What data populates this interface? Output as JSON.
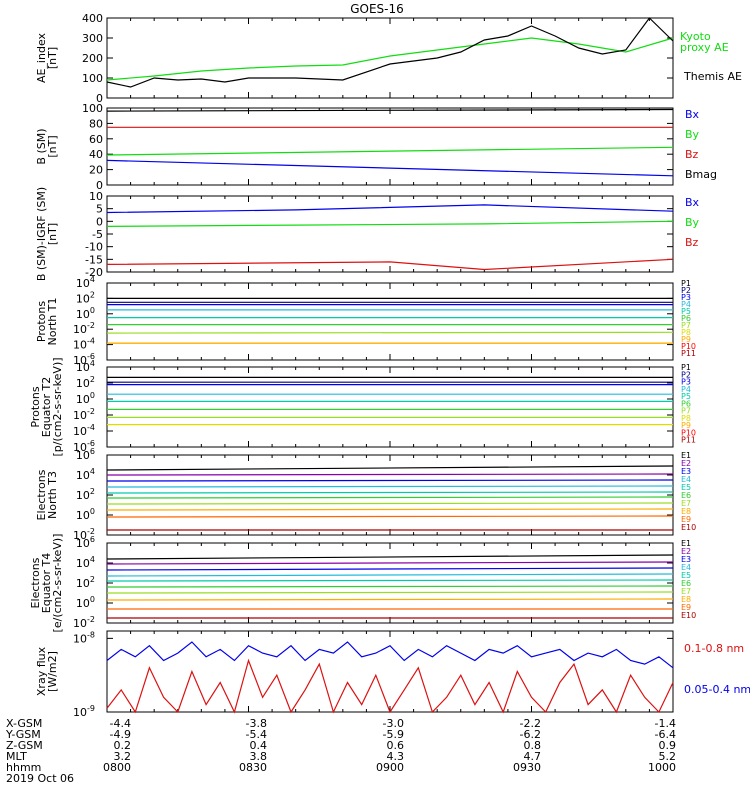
{
  "title": "GOES-16",
  "date": "2019 Oct 06",
  "footer": {
    "row_labels": [
      "X-GSM",
      "Y-GSM",
      "Z-GSM",
      "MLT",
      "hhmm"
    ],
    "columns": [
      {
        "values": [
          "-4.4",
          "-4.9",
          "0.2",
          "3.2",
          "0800"
        ]
      },
      {
        "values": [
          "-3.8",
          "-5.4",
          "0.4",
          "3.8",
          "0830"
        ]
      },
      {
        "values": [
          "-3.0",
          "-5.9",
          "0.6",
          "4.3",
          "0900"
        ]
      },
      {
        "values": [
          "-2.2",
          "-6.2",
          "0.8",
          "4.7",
          "0930"
        ]
      },
      {
        "values": [
          "-1.4",
          "-6.4",
          "0.9",
          "5.2",
          "1000"
        ]
      }
    ]
  },
  "colors": {
    "black": "#000000",
    "blue": "#0000ee",
    "green": "#11dd11",
    "red": "#dd1111",
    "navy": "#000080",
    "cyan": "#22bbdd",
    "teal": "#00ccaa",
    "bgreen": "#33cc33",
    "lime": "#99dd22",
    "yellow": "#dddd00",
    "gold": "#ffaa00",
    "orange": "#ff6600",
    "darkred": "#aa0000",
    "brightred": "#ff0000",
    "purple": "#8800aa"
  },
  "chart_data": [
    {
      "type": "line",
      "ylabel": "AE_index [nT]",
      "ylim": [
        0,
        400
      ],
      "yticks": [
        "0",
        "100",
        "200",
        "300",
        "400"
      ],
      "series": [
        {
          "name": "Kyoto proxy AE",
          "color": "#11dd11",
          "x": [
            0,
            10,
            20,
            30,
            40,
            50,
            60,
            70,
            80,
            90,
            100,
            110,
            120
          ],
          "y": [
            90,
            110,
            135,
            150,
            160,
            165,
            210,
            240,
            270,
            300,
            270,
            230,
            300
          ]
        },
        {
          "name": "Themis AE",
          "color": "#000000",
          "x": [
            0,
            5,
            10,
            15,
            20,
            25,
            30,
            40,
            50,
            60,
            70,
            75,
            80,
            85,
            90,
            95,
            100,
            105,
            110,
            115,
            120
          ],
          "y": [
            80,
            55,
            100,
            90,
            95,
            80,
            100,
            100,
            90,
            170,
            200,
            230,
            290,
            310,
            360,
            310,
            250,
            220,
            240,
            400,
            285
          ]
        }
      ]
    },
    {
      "type": "line",
      "ylabel": "B (SM) [nT]",
      "ylim": [
        0,
        100
      ],
      "yticks": [
        "0",
        "20",
        "40",
        "60",
        "80",
        "100"
      ],
      "series": [
        {
          "name": "Bx",
          "color": "#0000ee",
          "x": [
            0,
            120
          ],
          "y": [
            32,
            12
          ]
        },
        {
          "name": "By",
          "color": "#11dd11",
          "x": [
            0,
            120
          ],
          "y": [
            39,
            49
          ]
        },
        {
          "name": "Bz",
          "color": "#dd1111",
          "x": [
            0,
            120
          ],
          "y": [
            75,
            75
          ]
        },
        {
          "name": "Bmag",
          "color": "#000000",
          "x": [
            0,
            120
          ],
          "y": [
            96,
            98
          ]
        }
      ]
    },
    {
      "type": "line",
      "ylabel": "B (SM)-IGRF (SM) [nT]",
      "ylim": [
        -20,
        10
      ],
      "yticks": [
        "-20",
        "-15",
        "-10",
        "-5",
        "0",
        "5",
        "10"
      ],
      "series": [
        {
          "name": "Bx",
          "color": "#0000ee",
          "x": [
            0,
            40,
            80,
            120
          ],
          "y": [
            3.5,
            4.5,
            6.5,
            4
          ]
        },
        {
          "name": "By",
          "color": "#11dd11",
          "x": [
            0,
            40,
            80,
            120
          ],
          "y": [
            -2,
            -1.5,
            -1,
            0
          ]
        },
        {
          "name": "Bz",
          "color": "#dd1111",
          "x": [
            0,
            60,
            80,
            120
          ],
          "y": [
            -17,
            -16,
            -19,
            -15
          ]
        }
      ]
    },
    {
      "type": "line",
      "ylabel": "Protons North T1",
      "ylog": true,
      "yticks": [
        "10^-6",
        "10^-4",
        "10^-2",
        "10^0",
        "10^2",
        "10^4"
      ],
      "series": [
        {
          "name": "P1",
          "color": "#000000",
          "y": [
            2.0,
            2.0
          ]
        },
        {
          "name": "P2",
          "color": "#000080",
          "y": [
            1.5,
            1.5
          ]
        },
        {
          "name": "P3",
          "color": "#0000ee",
          "y": [
            1.2,
            1.2
          ]
        },
        {
          "name": "P4",
          "color": "#22bbdd",
          "y": [
            0.5,
            0.5
          ]
        },
        {
          "name": "P5",
          "color": "#00ccaa",
          "y": [
            -0.5,
            -0.5
          ]
        },
        {
          "name": "P6",
          "color": "#33cc33",
          "y": [
            -1.4,
            -1.4
          ]
        },
        {
          "name": "P7",
          "color": "#99dd22",
          "y": [
            -2.5,
            -2.4
          ]
        },
        {
          "name": "P8",
          "color": "#dddd00",
          "y": [
            -3.8,
            -3.8
          ]
        },
        {
          "name": "P9",
          "color": "#ffaa00",
          "y": [
            -3.8,
            -3.8
          ]
        },
        {
          "name": "P10",
          "color": "#ff0000",
          "y": [
            null,
            null
          ]
        },
        {
          "name": "P11",
          "color": "#aa0000",
          "y": [
            null,
            null
          ]
        }
      ]
    },
    {
      "type": "line",
      "ylabel": "Protons Equator T2 [p/(cm2-s-sr-keV)]",
      "ylog": true,
      "yticks": [
        "10^-6",
        "10^-4",
        "10^-2",
        "10^0",
        "10^2",
        "10^4"
      ],
      "series": [
        {
          "name": "P1",
          "color": "#000000",
          "y": [
            2.7,
            2.7
          ]
        },
        {
          "name": "P2",
          "color": "#000080",
          "y": [
            2.1,
            2.1
          ]
        },
        {
          "name": "P3",
          "color": "#0000ee",
          "y": [
            1.8,
            1.8
          ]
        },
        {
          "name": "P4",
          "color": "#22bbdd",
          "y": [
            0.6,
            0.6
          ]
        },
        {
          "name": "P5",
          "color": "#00ccaa",
          "y": [
            -0.3,
            -0.3
          ]
        },
        {
          "name": "P6",
          "color": "#33cc33",
          "y": [
            -1.3,
            -1.3
          ]
        },
        {
          "name": "P7",
          "color": "#99dd22",
          "y": [
            -2.3,
            -2.3
          ]
        },
        {
          "name": "P8",
          "color": "#dddd00",
          "y": [
            -3.2,
            -3.2
          ]
        },
        {
          "name": "P9",
          "color": "#ffaa00",
          "y": [
            null,
            null
          ]
        },
        {
          "name": "P10",
          "color": "#ff0000",
          "y": [
            null,
            null
          ]
        },
        {
          "name": "P11",
          "color": "#aa0000",
          "y": [
            null,
            null
          ]
        }
      ]
    },
    {
      "type": "line",
      "ylabel": "Electrons North T3",
      "ylog": true,
      "yticks": [
        "10^-2",
        "10^0",
        "10^2",
        "10^4",
        "10^6"
      ],
      "series": [
        {
          "name": "E1",
          "color": "#000000",
          "y": [
            4.5,
            4.9
          ]
        },
        {
          "name": "E2",
          "color": "#8800aa",
          "y": [
            4.0,
            4.1
          ]
        },
        {
          "name": "E3",
          "color": "#0000ee",
          "y": [
            3.4,
            3.5
          ]
        },
        {
          "name": "E4",
          "color": "#22bbdd",
          "y": [
            2.8,
            2.9
          ]
        },
        {
          "name": "E5",
          "color": "#00ccaa",
          "y": [
            2.2,
            2.3
          ]
        },
        {
          "name": "E6",
          "color": "#33cc33",
          "y": [
            1.7,
            1.8
          ]
        },
        {
          "name": "E7",
          "color": "#99dd22",
          "y": [
            1.1,
            1.2
          ]
        },
        {
          "name": "E8",
          "color": "#ffaa00",
          "y": [
            0.5,
            0.6
          ]
        },
        {
          "name": "E9",
          "color": "#ff6600",
          "y": [
            -0.2,
            -0.1
          ]
        },
        {
          "name": "E10",
          "color": "#aa0000",
          "y": [
            -1.5,
            -1.5
          ]
        }
      ]
    },
    {
      "type": "line",
      "ylabel": "Electrons Equator T4 [e/(cm2-s-sr-keV)]",
      "ylog": true,
      "yticks": [
        "10^-2",
        "10^0",
        "10^2",
        "10^4",
        "10^6"
      ],
      "series": [
        {
          "name": "E1",
          "color": "#000000",
          "y": [
            4.4,
            4.8
          ]
        },
        {
          "name": "E2",
          "color": "#8800aa",
          "y": [
            3.9,
            4.1
          ]
        },
        {
          "name": "E3",
          "color": "#0000ee",
          "y": [
            3.3,
            3.5
          ]
        },
        {
          "name": "E4",
          "color": "#22bbdd",
          "y": [
            2.7,
            2.9
          ]
        },
        {
          "name": "E5",
          "color": "#00ccaa",
          "y": [
            2.2,
            2.3
          ]
        },
        {
          "name": "E6",
          "color": "#33cc33",
          "y": [
            1.6,
            1.7
          ]
        },
        {
          "name": "E7",
          "color": "#99dd22",
          "y": [
            1.0,
            1.1
          ]
        },
        {
          "name": "E8",
          "color": "#ffaa00",
          "y": [
            0.3,
            0.4
          ]
        },
        {
          "name": "E9",
          "color": "#ff6600",
          "y": [
            -0.6,
            -0.6
          ]
        },
        {
          "name": "E10",
          "color": "#aa0000",
          "y": [
            -1.5,
            -1.5
          ]
        }
      ]
    },
    {
      "type": "line",
      "ylabel": "Xray flux [W/m2]",
      "ylog": true,
      "yticks": [
        "10^-9",
        "10^-8"
      ],
      "series": [
        {
          "name": "0.1-0.8 nm",
          "color": "#dd1111",
          "y": [
            -8.95,
            -8.7,
            -9.0,
            -8.4,
            -8.8,
            -9.0,
            -8.45,
            -8.9,
            -8.6,
            -9.0,
            -8.3,
            -8.8,
            -8.5,
            -9.0,
            -8.7,
            -8.35,
            -9.0,
            -8.6,
            -8.9,
            -8.5,
            -9.0,
            -8.7,
            -8.4,
            -9.0,
            -8.8,
            -8.5,
            -8.9,
            -8.6,
            -9.0,
            -8.45,
            -8.8,
            -9.0,
            -8.6,
            -8.35,
            -8.9,
            -8.7,
            -9.0,
            -8.5,
            -8.8,
            -9.0,
            -8.6
          ]
        },
        {
          "name": "0.05-0.4 nm",
          "color": "#0000ee",
          "y": [
            -8.3,
            -8.15,
            -8.25,
            -8.1,
            -8.3,
            -8.2,
            -8.05,
            -8.25,
            -8.15,
            -8.3,
            -8.1,
            -8.2,
            -8.25,
            -8.1,
            -8.3,
            -8.15,
            -8.2,
            -8.05,
            -8.25,
            -8.2,
            -8.1,
            -8.3,
            -8.15,
            -8.25,
            -8.1,
            -8.2,
            -8.3,
            -8.15,
            -8.2,
            -8.1,
            -8.25,
            -8.2,
            -8.15,
            -8.3,
            -8.2,
            -8.25,
            -8.15,
            -8.3,
            -8.35,
            -8.25,
            -8.4
          ]
        }
      ]
    }
  ]
}
